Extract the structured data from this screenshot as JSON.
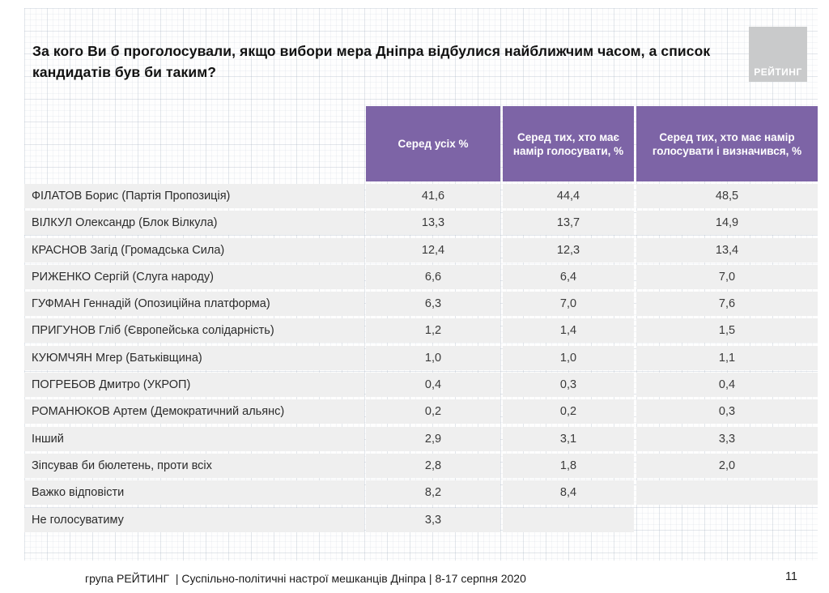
{
  "slide": {
    "title": "За кого Ви б проголосували, якщо вибори мера Дніпра відбулися найближчим часом, а список кандидатів був би таким?",
    "logo_label": "РЕЙТИНГ",
    "footer_text": "група РЕЙТИНГ  | Суспільно-політичні настрої мешканців Дніпра | 8-17 серпня 2020",
    "page_number": "11"
  },
  "colors": {
    "header_purple": "#7d64a6",
    "row_gray": "#efefef",
    "logo_gray": "#c9cacb"
  },
  "chart_data": {
    "type": "table",
    "headers": [
      "Серед усіх %",
      "Серед тих, хто має намір голосувати, %",
      "Серед тих, хто має намір голосувати і визначився, %"
    ],
    "rows": [
      {
        "label": "ФІЛАТОВ Борис (Партія Пропозиція)",
        "values": [
          "41,6",
          "44,4",
          "48,5"
        ]
      },
      {
        "label": "ВІЛКУЛ Олександр (Блок Вілкула)",
        "values": [
          "13,3",
          "13,7",
          "14,9"
        ]
      },
      {
        "label": "КРАСНОВ Загід (Громадська Сила)",
        "values": [
          "12,4",
          "12,3",
          "13,4"
        ]
      },
      {
        "label": "РИЖЕНКО Сергій (Слуга народу)",
        "values": [
          "6,6",
          "6,4",
          "7,0"
        ]
      },
      {
        "label": "ГУФМАН Геннадій (Опозиційна платформа)",
        "values": [
          "6,3",
          "7,0",
          "7,6"
        ]
      },
      {
        "label": "ПРИГУНОВ Гліб (Європейська солідарність)",
        "values": [
          "1,2",
          "1,4",
          "1,5"
        ]
      },
      {
        "label": "КУЮМЧЯН Мгер (Батьківщина)",
        "values": [
          "1,0",
          "1,0",
          "1,1"
        ]
      },
      {
        "label": "ПОГРЕБОВ Дмитро (УКРОП)",
        "values": [
          "0,4",
          "0,3",
          "0,4"
        ]
      },
      {
        "label": "РОМАНЮКОВ Артем (Демократичний альянс)",
        "values": [
          "0,2",
          "0,2",
          "0,3"
        ]
      },
      {
        "label": "Інший",
        "values": [
          "2,9",
          "3,1",
          "3,3"
        ]
      },
      {
        "label": "Зіпсував би бюлетень, проти всіх",
        "values": [
          "2,8",
          "1,8",
          "2,0"
        ]
      },
      {
        "label": "Важко відповісти",
        "values": [
          "8,2",
          "8,4",
          ""
        ]
      },
      {
        "label": "Не голосуватиму",
        "values": [
          "3,3",
          "",
          null
        ]
      }
    ]
  }
}
